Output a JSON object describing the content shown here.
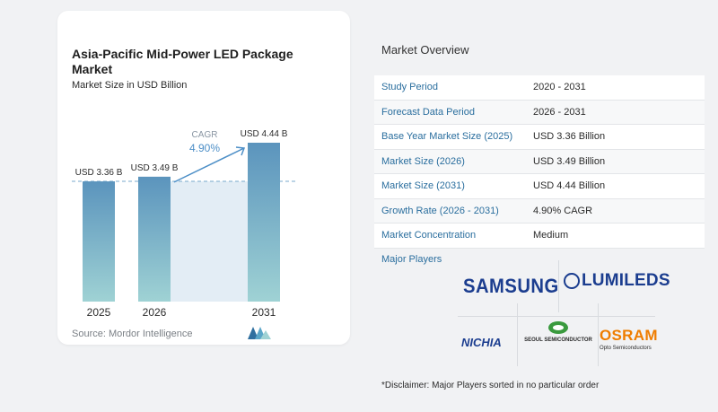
{
  "chart_data": {
    "type": "bar",
    "title": "Asia-Pacific Mid-Power LED Package Market",
    "subtitle": "Market Size in USD Billion",
    "categories": [
      "2025",
      "2026",
      "2031"
    ],
    "values": [
      3.36,
      3.49,
      4.44
    ],
    "data_labels": [
      "USD 3.36 B",
      "USD 3.49 B",
      "USD 4.44 B"
    ],
    "cagr_label": "CAGR",
    "cagr_value": "4.90%",
    "colors": {
      "bar_top": "#5b94bd",
      "bar_bottom": "#9fd2d4",
      "band": "#e3edf5",
      "arrow": "#4d8fc7"
    }
  },
  "source": "Source: Mordor Intelligence",
  "overview": {
    "title": "Market Overview",
    "rows": [
      {
        "label": "Study Period",
        "value": "2020 - 2031"
      },
      {
        "label": "Forecast Data Period",
        "value": "2026 - 2031"
      },
      {
        "label": "Base Year Market Size (2025)",
        "value": "USD 3.36 Billion"
      },
      {
        "label": "Market Size (2026)",
        "value": "USD 3.49 Billion"
      },
      {
        "label": "Market Size (2031)",
        "value": "USD 4.44 Billion"
      },
      {
        "label": "Growth Rate (2026 - 2031)",
        "value": "4.90% CAGR"
      },
      {
        "label": "Market Concentration",
        "value": "Medium"
      }
    ]
  },
  "players": {
    "label": "Major Players",
    "logos": {
      "samsung": "SAMSUNG",
      "lumileds": "LUMILEDS",
      "nichia": "NICHIA",
      "seoul": "SEOUL SEMICONDUCTOR",
      "osram": "OSRAM",
      "osram_sub": "Opto Semiconductors"
    }
  },
  "disclaimer": "*Disclaimer: Major Players sorted in no particular order"
}
